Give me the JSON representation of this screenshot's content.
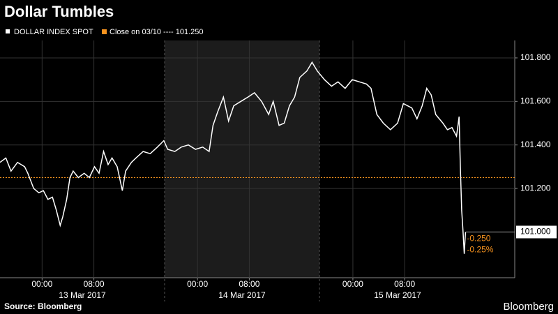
{
  "chart_data": {
    "type": "line",
    "title": "Dollar Tumbles",
    "source": "Source: Bloomberg",
    "brand": "Bloomberg",
    "x": [
      -6.5,
      -5.6,
      -4.8,
      -3.8,
      -2.7,
      -2.2,
      -1.3,
      -0.5,
      0.2,
      0.9,
      1.6,
      2.2,
      2.8,
      3.2,
      3.8,
      4.3,
      4.8,
      5.6,
      6.5,
      7.3,
      8.1,
      8.8,
      9.5,
      10.2,
      10.8,
      11.6,
      12.4,
      12.9,
      13.8,
      14.5,
      15.6,
      16.7,
      17.8,
      18.8,
      19.4,
      20.5,
      21.5,
      22.6,
      23.7,
      24.8,
      25.8,
      26.4,
      27.1,
      28.0,
      28.8,
      29.6,
      30.7,
      31.8,
      32.8,
      33.9,
      35.0,
      35.7,
      36.6,
      37.4,
      38.2,
      39.0,
      39.8,
      40.9,
      41.7,
      42.5,
      43.6,
      44.7,
      45.7,
      46.8,
      47.9,
      49.0,
      50.1,
      50.8,
      51.7,
      52.7,
      53.8,
      54.9,
      55.8,
      57.1,
      57.9,
      58.7,
      59.4,
      60.1,
      60.8,
      61.9,
      62.6,
      63.3,
      64.0,
      64.4,
      64.6,
      64.8,
      65.0,
      65.2,
      65.4
    ],
    "series": [
      {
        "name": "DOLLAR INDEX SPOT",
        "color": "#ffffff",
        "values": [
          101.32,
          101.34,
          101.28,
          101.32,
          101.3,
          101.27,
          101.2,
          101.18,
          101.19,
          101.15,
          101.16,
          101.1,
          101.03,
          101.07,
          101.15,
          101.25,
          101.28,
          101.25,
          101.27,
          101.25,
          101.3,
          101.27,
          101.37,
          101.31,
          101.34,
          101.3,
          101.19,
          101.28,
          101.32,
          101.34,
          101.37,
          101.36,
          101.39,
          101.42,
          101.38,
          101.37,
          101.39,
          101.4,
          101.38,
          101.39,
          101.37,
          101.49,
          101.55,
          101.62,
          101.51,
          101.58,
          101.6,
          101.62,
          101.64,
          101.6,
          101.54,
          101.6,
          101.49,
          101.5,
          101.58,
          101.62,
          101.71,
          101.74,
          101.78,
          101.74,
          101.7,
          101.67,
          101.69,
          101.66,
          101.7,
          101.69,
          101.68,
          101.66,
          101.54,
          101.5,
          101.47,
          101.5,
          101.59,
          101.57,
          101.52,
          101.58,
          101.66,
          101.63,
          101.54,
          101.5,
          101.47,
          101.48,
          101.44,
          101.53,
          101.3,
          101.1,
          101.01,
          100.9,
          101.0
        ]
      }
    ],
    "reference": {
      "label": "Close on 03/10 ---- 101.250",
      "value": 101.25,
      "color": "#f7931e"
    },
    "last_value": {
      "value": 101.0,
      "label": "101.000"
    },
    "change_labels": [
      "-0.250",
      "-0.25%"
    ],
    "day_labels": [
      "13 Mar 2017",
      "14 Mar 2017",
      "15 Mar 2017"
    ],
    "xlim": [
      -6.5,
      73
    ],
    "xticks": [
      {
        "value": 0,
        "label": "00:00"
      },
      {
        "value": 8,
        "label": "08:00"
      },
      {
        "value": 24,
        "label": "00:00"
      },
      {
        "value": 32,
        "label": "08:00"
      },
      {
        "value": 48,
        "label": "00:00"
      },
      {
        "value": 56,
        "label": "08:00"
      }
    ],
    "ylim": [
      100.79,
      101.88
    ],
    "yticks": [
      {
        "value": 101.2,
        "label": "101.200"
      },
      {
        "value": 101.4,
        "label": "101.400"
      },
      {
        "value": 101.6,
        "label": "101.600"
      },
      {
        "value": 101.8,
        "label": "101.800"
      }
    ],
    "grid": true
  }
}
